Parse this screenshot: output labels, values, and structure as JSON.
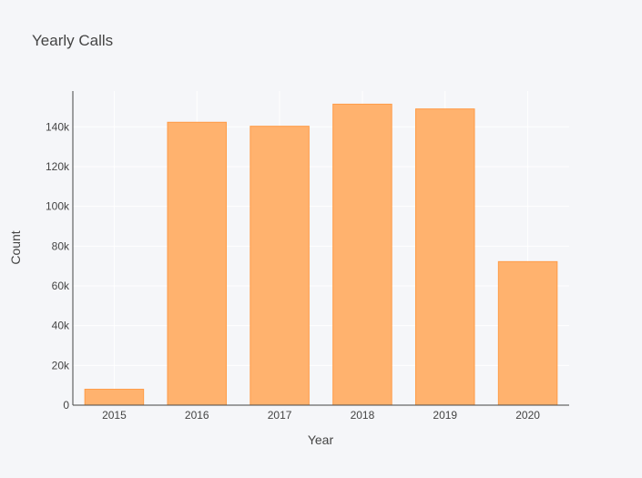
{
  "chart_data": {
    "type": "bar",
    "title": "Yearly Calls",
    "xlabel": "Year",
    "ylabel": "Count",
    "categories": [
      "2015",
      "2016",
      "2017",
      "2018",
      "2019",
      "2020"
    ],
    "values": [
      8000,
      142300,
      140300,
      151400,
      149000,
      72200
    ],
    "ylim": [
      0,
      158000
    ],
    "yticks": [
      0,
      20000,
      40000,
      60000,
      80000,
      100000,
      120000,
      140000
    ],
    "ytick_labels": [
      "0",
      "20k",
      "40k",
      "60k",
      "80k",
      "100k",
      "120k",
      "140k"
    ],
    "grid": true,
    "legend": "none",
    "colors": {
      "bar_fill": "#ffb26e",
      "bar_stroke": "#ff9c48",
      "background": "#f5f6f9",
      "grid": "#ffffff",
      "axis": "#444444"
    }
  }
}
